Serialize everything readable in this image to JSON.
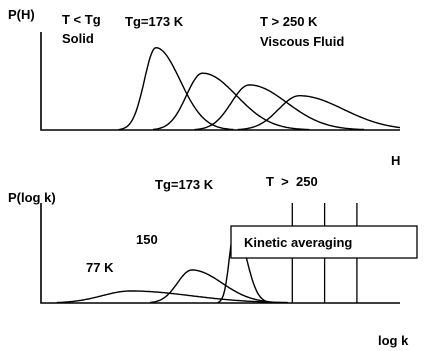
{
  "chart_data": [
    {
      "type": "line",
      "ylabel": "P(H)",
      "xlabel": "H",
      "annotations": {
        "low_temp_line1": "T < Tg",
        "low_temp_line2": "Solid",
        "tg": "Tg=173 K",
        "high_temp_line1": "T > 250 K",
        "high_temp_line2": "Viscous Fluid"
      },
      "series": [
        {
          "peak_x": 0.32,
          "peak_y": 0.84,
          "width": 0.032
        },
        {
          "peak_x": 0.45,
          "peak_y": 0.58,
          "width": 0.045
        },
        {
          "peak_x": 0.58,
          "peak_y": 0.46,
          "width": 0.05
        },
        {
          "peak_x": 0.72,
          "peak_y": 0.35,
          "width": 0.058
        }
      ],
      "grid": false
    },
    {
      "type": "line",
      "ylabel": "P(log k)",
      "xlabel": "log k",
      "annotations": {
        "tg": "Tg=173 K",
        "high_temp": "T  >  250",
        "box": "Kinetic averaging"
      },
      "series": [
        {
          "name": "77 K",
          "peak_x": 0.25,
          "peak_y": 0.12,
          "width": 0.08
        },
        {
          "name": "150",
          "peak_x": 0.42,
          "peak_y": 0.33,
          "width": 0.04
        },
        {
          "name": "Tg=173 K",
          "peak_x": 0.54,
          "peak_y": 0.76,
          "width": 0.015
        }
      ],
      "vertical_lines_x": [
        0.7,
        0.79,
        0.88
      ],
      "grid": false
    }
  ]
}
